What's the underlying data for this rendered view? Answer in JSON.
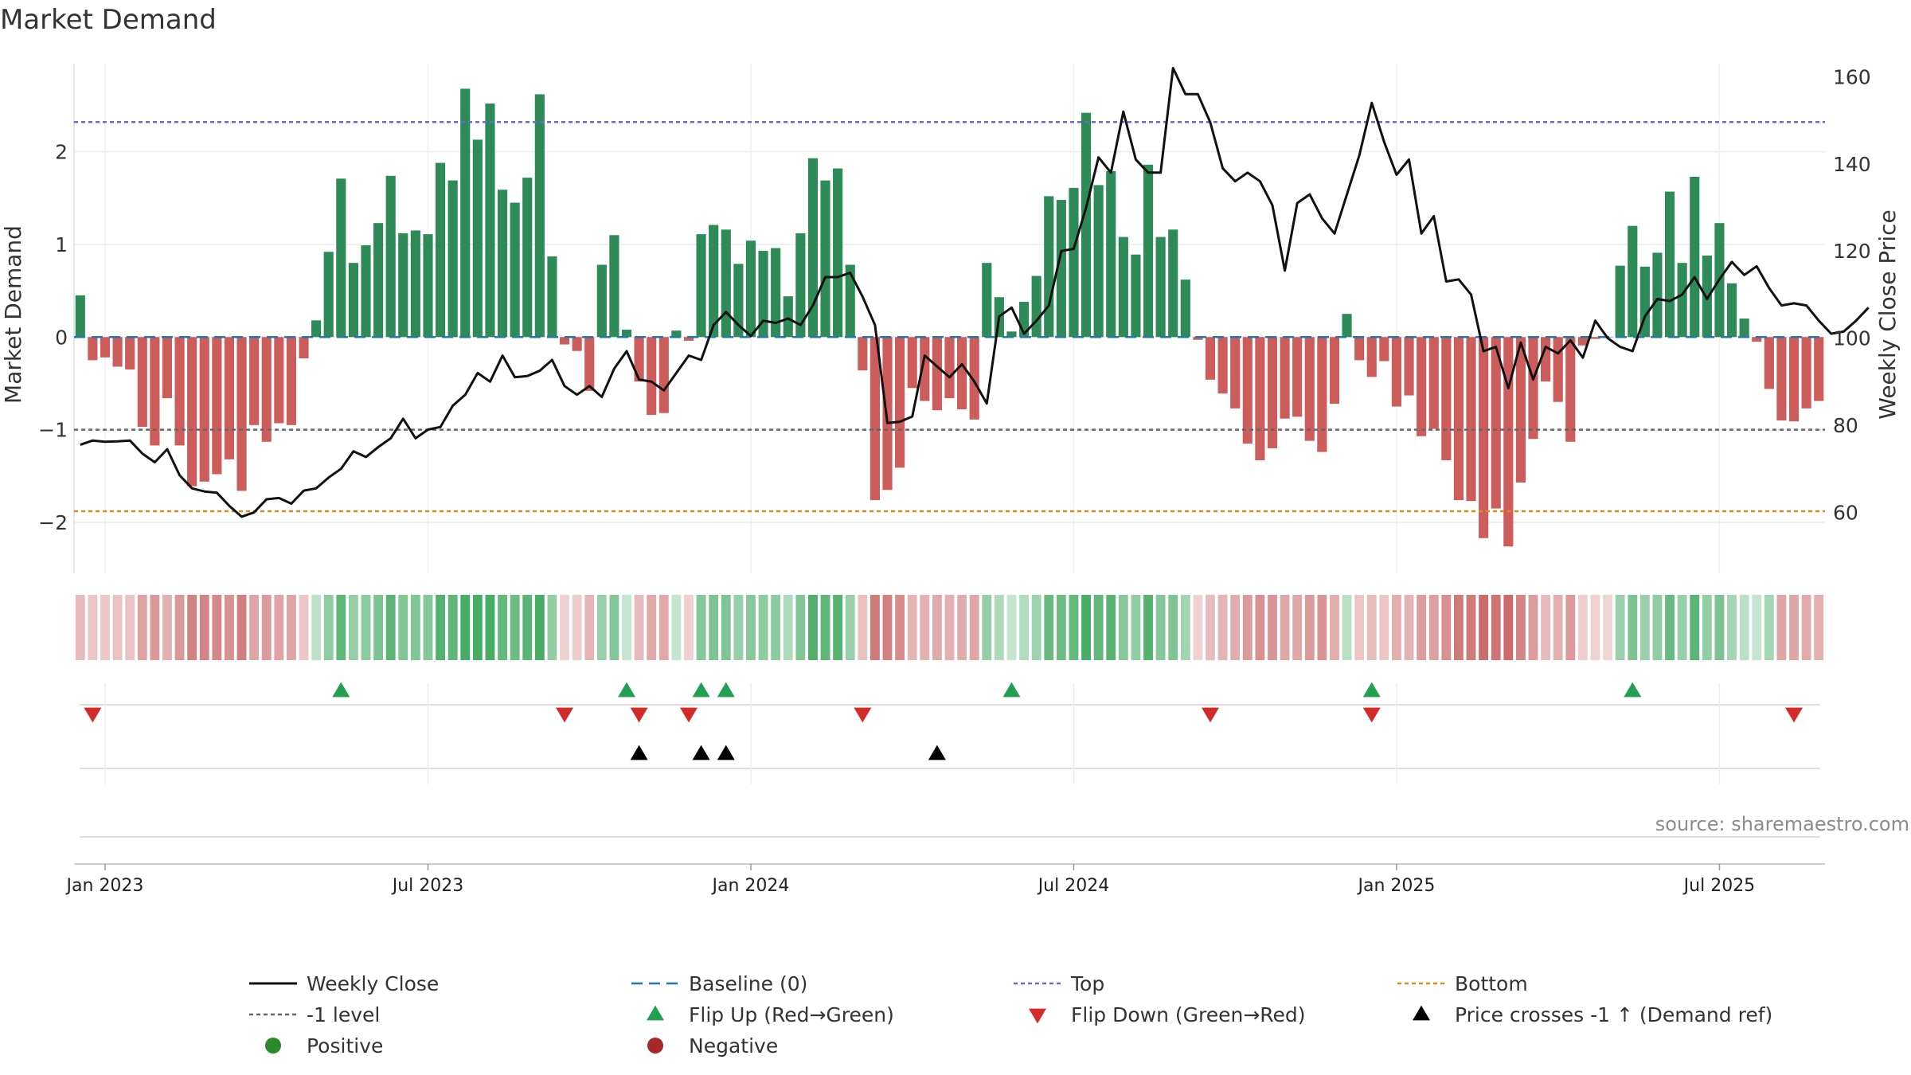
{
  "chart_data": {
    "type": "bar",
    "title": "Market Demand",
    "xlabel": "",
    "ylabel": "Market Demand",
    "y2label": "Weekly Close Price",
    "ylim": [
      -2.55,
      2.95
    ],
    "y2lim": [
      46,
      163
    ],
    "yticks": [
      2,
      1,
      0,
      -1,
      -2
    ],
    "ytick_labels": [
      "2",
      "1",
      "0",
      "−1",
      "−2"
    ],
    "y2ticks": [
      160,
      140,
      120,
      100,
      80,
      60
    ],
    "y2tick_labels": [
      "160",
      "140",
      "120",
      "100",
      "80",
      "60"
    ],
    "xticks": [
      {
        "week": 0,
        "label": "Jan 2023"
      },
      {
        "week": 26,
        "label": "Jul 2023"
      },
      {
        "week": 52,
        "label": "Jan 2024"
      },
      {
        "week": 78,
        "label": "Jul 2024"
      },
      {
        "week": 104,
        "label": "Jan 2025"
      },
      {
        "week": 130,
        "label": "Jul 2025"
      }
    ],
    "start_week": -2,
    "levels": {
      "top": 2.32,
      "bottom": -1.88,
      "minus_one": -1,
      "baseline": 0
    },
    "demand": [
      0.45,
      -0.25,
      -0.22,
      -0.32,
      -0.35,
      -0.97,
      -1.17,
      -0.66,
      -1.17,
      -1.61,
      -1.56,
      -1.48,
      -1.32,
      -1.66,
      -0.95,
      -1.13,
      -0.93,
      -0.95,
      -0.23,
      0.18,
      0.92,
      1.71,
      0.8,
      0.99,
      1.23,
      1.74,
      1.12,
      1.15,
      1.11,
      1.88,
      1.69,
      2.68,
      2.13,
      2.52,
      1.59,
      1.45,
      1.72,
      2.62,
      0.87,
      -0.08,
      -0.15,
      -0.58,
      0.78,
      1.1,
      0.08,
      -0.48,
      -0.84,
      -0.82,
      0.07,
      -0.04,
      1.11,
      1.21,
      1.16,
      0.79,
      1.04,
      0.93,
      0.96,
      0.44,
      1.12,
      1.93,
      1.69,
      1.82,
      0.78,
      -0.36,
      -1.76,
      -1.65,
      -1.41,
      -0.55,
      -0.69,
      -0.79,
      -0.66,
      -0.78,
      -0.89,
      0.8,
      0.43,
      0.06,
      0.38,
      0.66,
      1.52,
      1.48,
      1.61,
      2.42,
      1.64,
      1.79,
      1.08,
      0.89,
      1.86,
      1.08,
      1.16,
      0.62,
      -0.03,
      -0.46,
      -0.61,
      -0.77,
      -1.15,
      -1.33,
      -1.2,
      -0.88,
      -0.86,
      -1.12,
      -1.24,
      -0.72,
      0.25,
      -0.25,
      -0.43,
      -0.26,
      -0.75,
      -0.63,
      -1.07,
      -0.99,
      -1.33,
      -1.76,
      -1.77,
      -2.17,
      -1.85,
      -2.26,
      -1.57,
      -1.1,
      -0.48,
      -0.7,
      -1.13,
      -0.09,
      -0.02,
      0,
      0.77,
      1.2,
      0.76,
      0.91,
      1.57,
      0.8,
      1.73,
      0.88,
      1.23,
      0.58,
      0.2,
      -0.05,
      -0.56,
      -0.9,
      -0.91,
      -0.77,
      -0.69
    ],
    "price": [
      75.5,
      76.5,
      76.2,
      76.3,
      76.5,
      73.5,
      71.5,
      74.5,
      68.5,
      65.5,
      64.8,
      64.5,
      61.5,
      59,
      60,
      63,
      63.3,
      62,
      65,
      65.5,
      68,
      70,
      74,
      72.7,
      75,
      77,
      81.5,
      77,
      79,
      79.6,
      84.5,
      87,
      92,
      90,
      96,
      91,
      91.3,
      92.5,
      95,
      89,
      87,
      89,
      86.5,
      93,
      97,
      90.5,
      90,
      88,
      92,
      96,
      95,
      103,
      106,
      103,
      100.5,
      104,
      103.5,
      104.5,
      103,
      107.5,
      114,
      114,
      115,
      109.5,
      103,
      80.5,
      80.8,
      82,
      96,
      93.5,
      91,
      94,
      90,
      85,
      105,
      107,
      101,
      104,
      107.5,
      120,
      120.5,
      130,
      141.5,
      138,
      152,
      141,
      138,
      138,
      162,
      156,
      156,
      149.5,
      139,
      136,
      138,
      136,
      130.5,
      115.5,
      131,
      133,
      127.5,
      124,
      133,
      142,
      154,
      145,
      137.5,
      141,
      124,
      128,
      113,
      113.5,
      110,
      97,
      98,
      88.5,
      99,
      90.5,
      98,
      96.5,
      99.5,
      95.5,
      104,
      100,
      98,
      97,
      105,
      109,
      108.5,
      110,
      114,
      109,
      113.5,
      117.5,
      114.5,
      116.5,
      111.5,
      107.5,
      108,
      107.5,
      104,
      101,
      101.5,
      104,
      107
    ],
    "heat_strip": [
      {
        "from": 0,
        "to": 18,
        "tone": "negative"
      },
      {
        "from": 19,
        "to": 38,
        "tone": "positive"
      },
      {
        "from": 39,
        "to": 41,
        "tone": "negative"
      },
      {
        "from": 42,
        "to": 44,
        "tone": "positive"
      },
      {
        "from": 45,
        "to": 47,
        "tone": "negative"
      },
      {
        "from": 48,
        "to": 48,
        "tone": "positive"
      },
      {
        "from": 49,
        "to": 49,
        "tone": "negative"
      },
      {
        "from": 50,
        "to": 62,
        "tone": "positive"
      },
      {
        "from": 63,
        "to": 72,
        "tone": "negative"
      },
      {
        "from": 73,
        "to": 89,
        "tone": "positive"
      },
      {
        "from": 90,
        "to": 101,
        "tone": "negative"
      },
      {
        "from": 102,
        "to": 102,
        "tone": "positive"
      },
      {
        "from": 103,
        "to": 123,
        "tone": "negative"
      },
      {
        "from": 124,
        "to": 136,
        "tone": "positive"
      },
      {
        "from": 137,
        "to": 142,
        "tone": "negative"
      }
    ],
    "flip_up_weeks": [
      19,
      42,
      48,
      50,
      73,
      102,
      123
    ],
    "flip_down_weeks": [
      -1,
      37,
      43,
      47,
      61,
      89,
      102,
      136
    ],
    "price_cross_weeks": [
      43,
      48,
      50,
      67
    ],
    "legend": [
      {
        "label": "Weekly Close",
        "marker": "solid-line"
      },
      {
        "label": "Baseline (0)",
        "marker": "dashed-line"
      },
      {
        "label": "Top",
        "marker": "dotted-line"
      },
      {
        "label": "Bottom",
        "marker": "dotted-line"
      },
      {
        "label": "-1 level",
        "marker": "dotted-line"
      },
      {
        "label": "Flip Up (Red→Green)",
        "marker": "triangle-up"
      },
      {
        "label": "Flip Down (Green→Red)",
        "marker": "triangle-down"
      },
      {
        "label": "Price crosses -1 ↑ (Demand ref)",
        "marker": "triangle-up"
      },
      {
        "label": "Positive",
        "marker": "circle"
      },
      {
        "label": "Negative",
        "marker": "circle"
      }
    ],
    "legend_placement": "bottom",
    "source": "source: sharemaestro.com"
  },
  "colors": {
    "positive": "#2e8b57",
    "negative": "#cd5c5c",
    "price": "#111111",
    "baseline": "#1f77b4",
    "top": "#6a6ad0",
    "bottom": "#e08a10",
    "minus_one": "#666666",
    "flip_up": "#22a052",
    "flip_down": "#d42a2a",
    "cross": "#000000",
    "positive_dot": "#2a8a2a",
    "negative_dot": "#a82828"
  }
}
